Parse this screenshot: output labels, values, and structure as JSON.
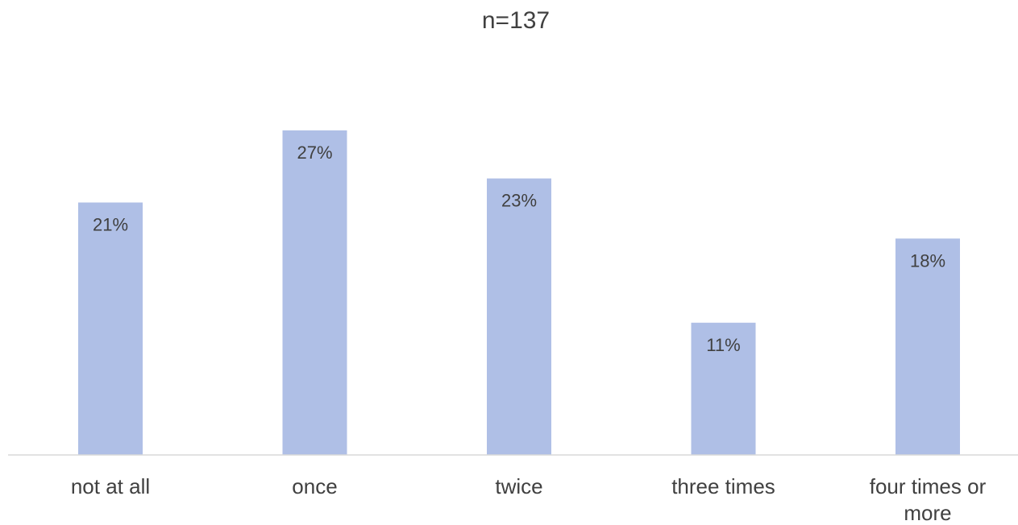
{
  "chart_data": {
    "type": "bar",
    "title": "n=137",
    "categories": [
      "not at all",
      "once",
      "twice",
      "three times",
      "four times or more"
    ],
    "category_lines": [
      [
        "not at all"
      ],
      [
        "once"
      ],
      [
        "twice"
      ],
      [
        "three times"
      ],
      [
        "four times or",
        "more"
      ]
    ],
    "values": [
      21,
      27,
      23,
      11,
      18
    ],
    "value_labels": [
      "21%",
      "27%",
      "23%",
      "11%",
      "18%"
    ],
    "unit": "%",
    "xlabel": "",
    "ylabel": "",
    "ylim": [
      0,
      35.5
    ],
    "grid": false,
    "legend": "none",
    "bar_color": "#afbfe6",
    "axis_color": "#d9d9d9",
    "text_color": "#404040"
  }
}
